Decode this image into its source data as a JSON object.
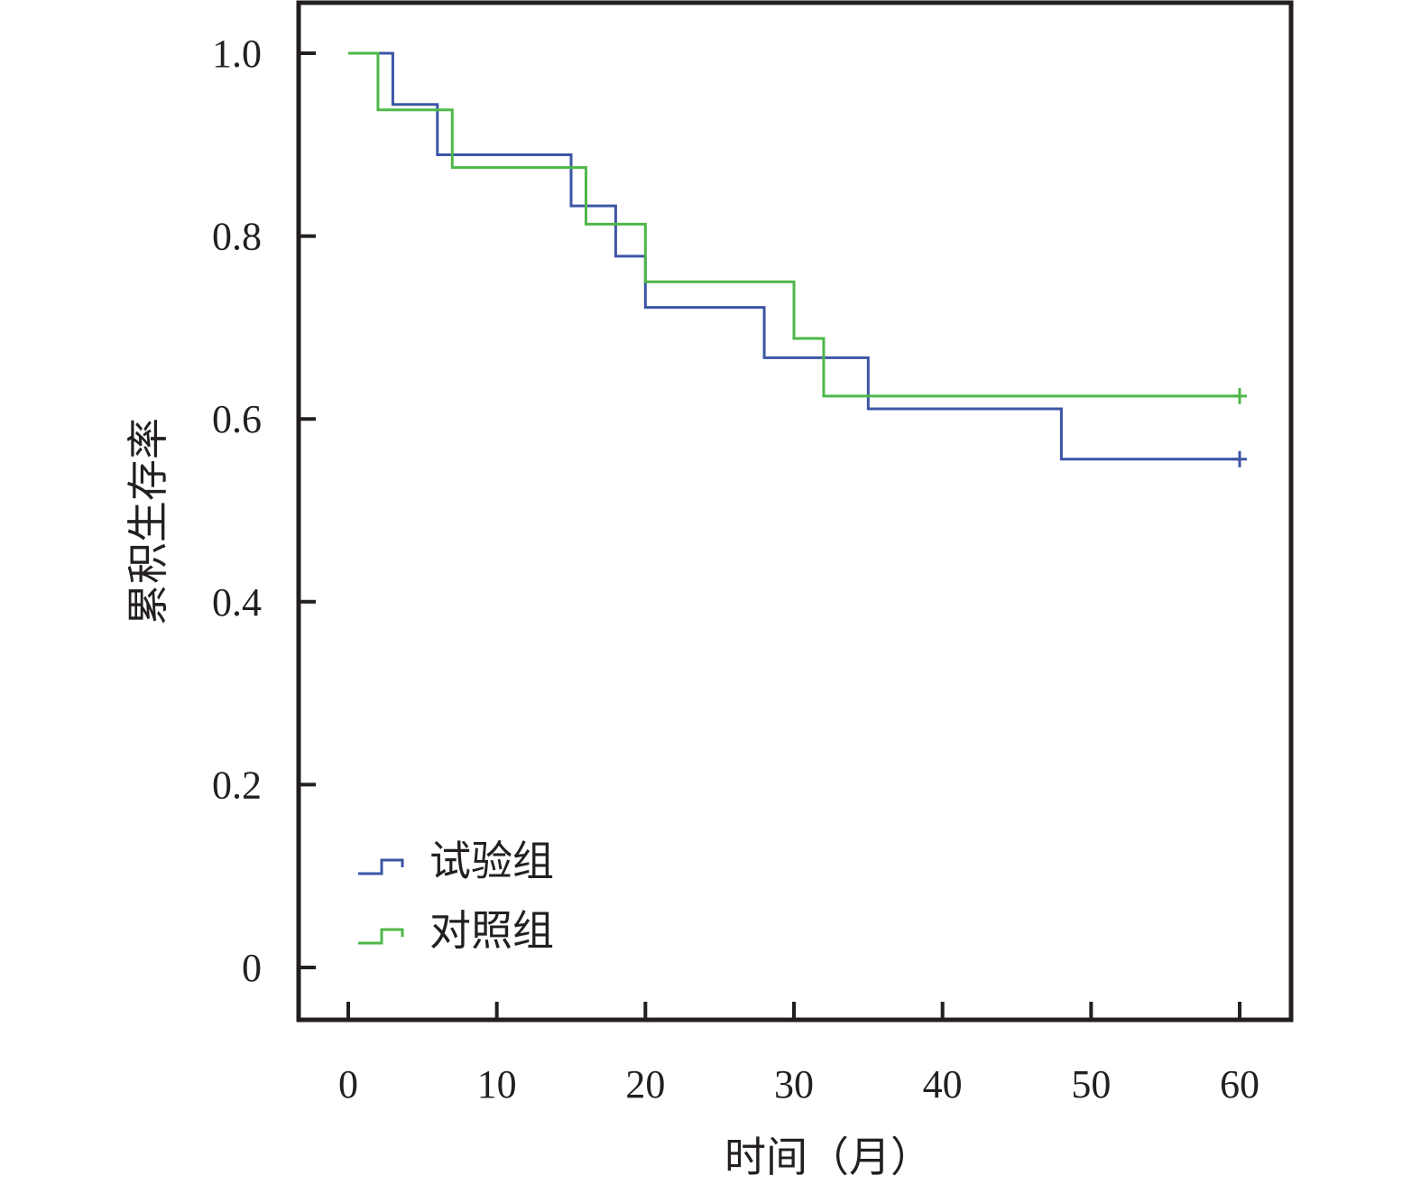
{
  "chart_data": {
    "type": "line",
    "step": true,
    "xlabel": "时间（月）",
    "ylabel": "累积生存率",
    "xlim": [
      0,
      60
    ],
    "ylim": [
      0,
      1.0
    ],
    "x_ticks": [
      0,
      10,
      20,
      30,
      40,
      50,
      60
    ],
    "x_tick_labels": [
      "0",
      "10",
      "20",
      "30",
      "40",
      "50",
      "60"
    ],
    "y_ticks": [
      0,
      0.2,
      0.4,
      0.6,
      0.8,
      1.0
    ],
    "y_tick_labels": [
      "0",
      "0.2",
      "0.4",
      "0.6",
      "0.8",
      "1.0"
    ],
    "grid": false,
    "legend_position": "bottom-left",
    "series": [
      {
        "name": "试验组",
        "color": "#3c56a5",
        "points": [
          [
            0,
            1.0
          ],
          [
            3,
            0.944
          ],
          [
            6,
            0.889
          ],
          [
            15,
            0.833
          ],
          [
            18,
            0.778
          ],
          [
            20,
            0.722
          ],
          [
            28,
            0.667
          ],
          [
            35,
            0.611
          ],
          [
            48,
            0.556
          ],
          [
            60,
            0.556
          ]
        ],
        "censor": [
          [
            60,
            0.556
          ]
        ]
      },
      {
        "name": "对照组",
        "color": "#4eb748",
        "points": [
          [
            0,
            1.0
          ],
          [
            2,
            0.938
          ],
          [
            7,
            0.875
          ],
          [
            16,
            0.813
          ],
          [
            20,
            0.75
          ],
          [
            30,
            0.688
          ],
          [
            32,
            0.625
          ],
          [
            60,
            0.625
          ]
        ],
        "censor": [
          [
            60,
            0.625
          ]
        ]
      }
    ]
  }
}
